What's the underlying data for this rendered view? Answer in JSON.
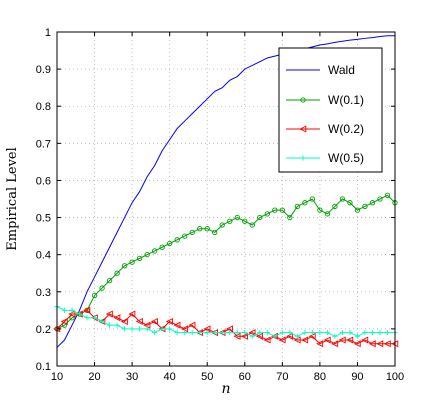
{
  "chart_data": {
    "type": "line",
    "title": "",
    "xlabel": "n",
    "ylabel": "Empirical Level",
    "xlim": [
      10,
      100
    ],
    "ylim": [
      0.1,
      1
    ],
    "grid": true,
    "legend_position": "top-right",
    "x_ticks": [
      10,
      20,
      30,
      40,
      50,
      60,
      70,
      80,
      90,
      100
    ],
    "y_ticks": [
      0.1,
      0.2,
      0.3,
      0.4,
      0.5,
      0.6,
      0.7,
      0.8,
      0.9,
      1
    ],
    "x_tick_labels": [
      "10",
      "20",
      "30",
      "40",
      "50",
      "60",
      "70",
      "80",
      "90",
      "100"
    ],
    "y_tick_labels": [
      "0.1",
      "0.2",
      "0.3",
      "0.4",
      "0.5",
      "0.6",
      "0.7",
      "0.8",
      "0.9",
      "1"
    ],
    "series": [
      {
        "name": "Wald",
        "color": "#0000ff",
        "marker": "none",
        "x": [
          10,
          12,
          14,
          16,
          18,
          20,
          22,
          24,
          26,
          28,
          30,
          32,
          34,
          36,
          38,
          40,
          42,
          44,
          46,
          48,
          50,
          52,
          54,
          56,
          58,
          60,
          62,
          64,
          66,
          68,
          70,
          72,
          74,
          76,
          78,
          80,
          82,
          84,
          86,
          88,
          90,
          92,
          94,
          96,
          98,
          100
        ],
        "y": [
          0.15,
          0.17,
          0.21,
          0.25,
          0.3,
          0.34,
          0.38,
          0.42,
          0.46,
          0.5,
          0.54,
          0.57,
          0.61,
          0.64,
          0.68,
          0.71,
          0.74,
          0.76,
          0.78,
          0.8,
          0.82,
          0.84,
          0.85,
          0.87,
          0.88,
          0.9,
          0.91,
          0.92,
          0.93,
          0.935,
          0.94,
          0.945,
          0.95,
          0.955,
          0.96,
          0.965,
          0.968,
          0.972,
          0.975,
          0.978,
          0.98,
          0.983,
          0.985,
          0.988,
          0.99,
          0.99
        ]
      },
      {
        "name": "W(0.1)",
        "color": "#00a000",
        "marker": "circle",
        "x": [
          10,
          12,
          14,
          16,
          18,
          20,
          22,
          24,
          26,
          28,
          30,
          32,
          34,
          36,
          38,
          40,
          42,
          44,
          46,
          48,
          50,
          52,
          54,
          56,
          58,
          60,
          62,
          64,
          66,
          68,
          70,
          72,
          74,
          76,
          78,
          80,
          82,
          84,
          86,
          88,
          90,
          92,
          94,
          96,
          98,
          100
        ],
        "y": [
          0.2,
          0.21,
          0.23,
          0.24,
          0.25,
          0.29,
          0.31,
          0.33,
          0.35,
          0.37,
          0.38,
          0.39,
          0.4,
          0.41,
          0.42,
          0.43,
          0.44,
          0.45,
          0.46,
          0.47,
          0.47,
          0.46,
          0.48,
          0.49,
          0.5,
          0.49,
          0.48,
          0.5,
          0.51,
          0.52,
          0.52,
          0.5,
          0.53,
          0.54,
          0.55,
          0.52,
          0.51,
          0.53,
          0.55,
          0.54,
          0.52,
          0.53,
          0.54,
          0.55,
          0.56,
          0.54
        ]
      },
      {
        "name": "W(0.2)",
        "color": "#ff0000",
        "marker": "triangle-left",
        "x": [
          10,
          12,
          14,
          16,
          18,
          20,
          22,
          24,
          26,
          28,
          30,
          32,
          34,
          36,
          38,
          40,
          42,
          44,
          46,
          48,
          50,
          52,
          54,
          56,
          58,
          60,
          62,
          64,
          66,
          68,
          70,
          72,
          74,
          76,
          78,
          80,
          82,
          84,
          86,
          88,
          90,
          92,
          94,
          96,
          98,
          100
        ],
        "y": [
          0.2,
          0.22,
          0.24,
          0.24,
          0.25,
          0.23,
          0.22,
          0.24,
          0.23,
          0.22,
          0.24,
          0.22,
          0.21,
          0.22,
          0.2,
          0.22,
          0.21,
          0.2,
          0.21,
          0.19,
          0.2,
          0.19,
          0.19,
          0.2,
          0.18,
          0.18,
          0.19,
          0.18,
          0.17,
          0.18,
          0.17,
          0.18,
          0.17,
          0.17,
          0.18,
          0.16,
          0.17,
          0.16,
          0.17,
          0.17,
          0.16,
          0.17,
          0.16,
          0.16,
          0.16,
          0.16
        ]
      },
      {
        "name": "W(0.5)",
        "color": "#00ffc0",
        "marker": "plus",
        "x": [
          10,
          12,
          14,
          16,
          18,
          20,
          22,
          24,
          26,
          28,
          30,
          32,
          34,
          36,
          38,
          40,
          42,
          44,
          46,
          48,
          50,
          52,
          54,
          56,
          58,
          60,
          62,
          64,
          66,
          68,
          70,
          72,
          74,
          76,
          78,
          80,
          82,
          84,
          86,
          88,
          90,
          92,
          94,
          96,
          98,
          100
        ],
        "y": [
          0.26,
          0.25,
          0.25,
          0.24,
          0.23,
          0.23,
          0.22,
          0.21,
          0.21,
          0.2,
          0.2,
          0.2,
          0.2,
          0.19,
          0.2,
          0.2,
          0.19,
          0.19,
          0.19,
          0.19,
          0.19,
          0.19,
          0.19,
          0.19,
          0.19,
          0.19,
          0.18,
          0.19,
          0.19,
          0.18,
          0.19,
          0.19,
          0.18,
          0.19,
          0.19,
          0.19,
          0.19,
          0.18,
          0.19,
          0.19,
          0.18,
          0.19,
          0.19,
          0.19,
          0.19,
          0.19
        ]
      }
    ]
  }
}
